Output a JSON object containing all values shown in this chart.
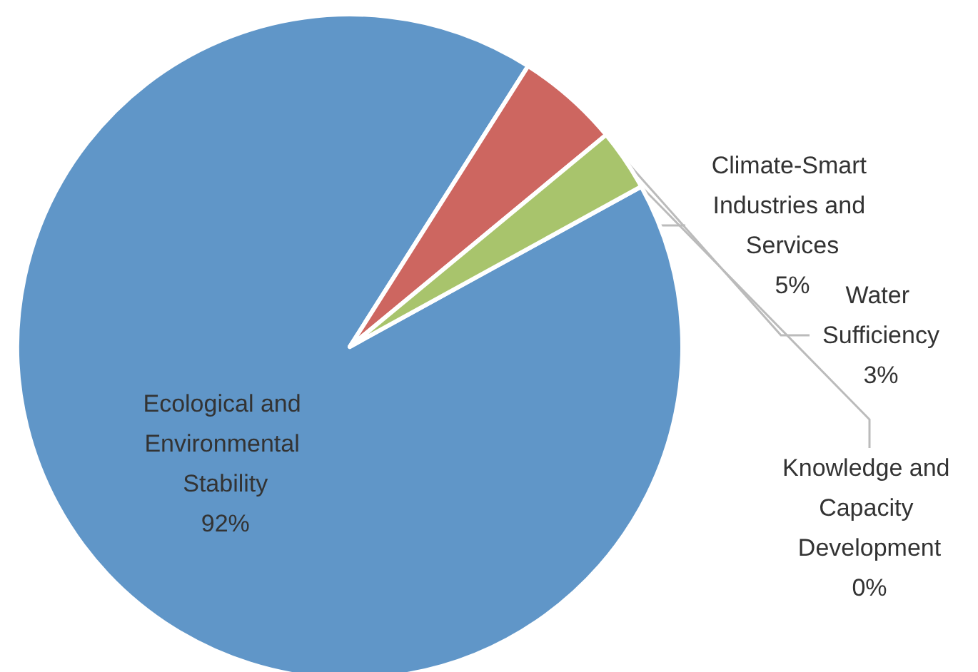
{
  "chart_data": {
    "type": "pie",
    "categories": [
      "Ecological and Environmental Stability",
      "Climate-Smart Industries and Services",
      "Water Sufficiency",
      "Knowledge and Capacity Development"
    ],
    "values": [
      92,
      5,
      3,
      0
    ],
    "colors": [
      "#6096c8",
      "#cd6660",
      "#a8c46c",
      "#7f9fcf"
    ],
    "value_labels": [
      "92%",
      "5%",
      "3%",
      "0%"
    ]
  }
}
